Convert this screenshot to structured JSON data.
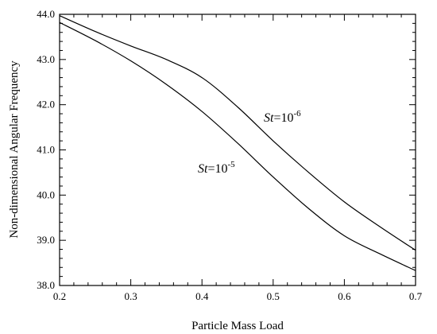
{
  "chart_data": {
    "type": "line",
    "xlabel": "Particle Mass Load",
    "ylabel": "Non-dimensional Angular Frequency",
    "xlim": [
      0.2,
      0.7
    ],
    "ylim": [
      38.0,
      44.0
    ],
    "x_ticks": [
      "0.2",
      "0.3",
      "0.4",
      "0.5",
      "0.6",
      "0.7"
    ],
    "y_ticks": [
      "38.0",
      "39.0",
      "40.0",
      "41.0",
      "42.0",
      "43.0",
      "44.0"
    ],
    "grid": false,
    "legend": "none",
    "series": [
      {
        "label_parts": [
          "St",
          "=10",
          "-6"
        ],
        "x": [
          0.2,
          0.25,
          0.3,
          0.35,
          0.4,
          0.45,
          0.5,
          0.55,
          0.6,
          0.65,
          0.7
        ],
        "y": [
          43.97,
          43.62,
          43.3,
          43.0,
          42.6,
          41.95,
          41.2,
          40.5,
          39.85,
          39.3,
          38.78
        ]
      },
      {
        "label_parts": [
          "St",
          "=10",
          "-5"
        ],
        "x": [
          0.2,
          0.25,
          0.3,
          0.35,
          0.4,
          0.45,
          0.5,
          0.55,
          0.6,
          0.65,
          0.7
        ],
        "y": [
          43.82,
          43.42,
          42.97,
          42.45,
          41.85,
          41.15,
          40.4,
          39.7,
          39.1,
          38.7,
          38.33
        ]
      }
    ],
    "line_color": "#000000"
  }
}
